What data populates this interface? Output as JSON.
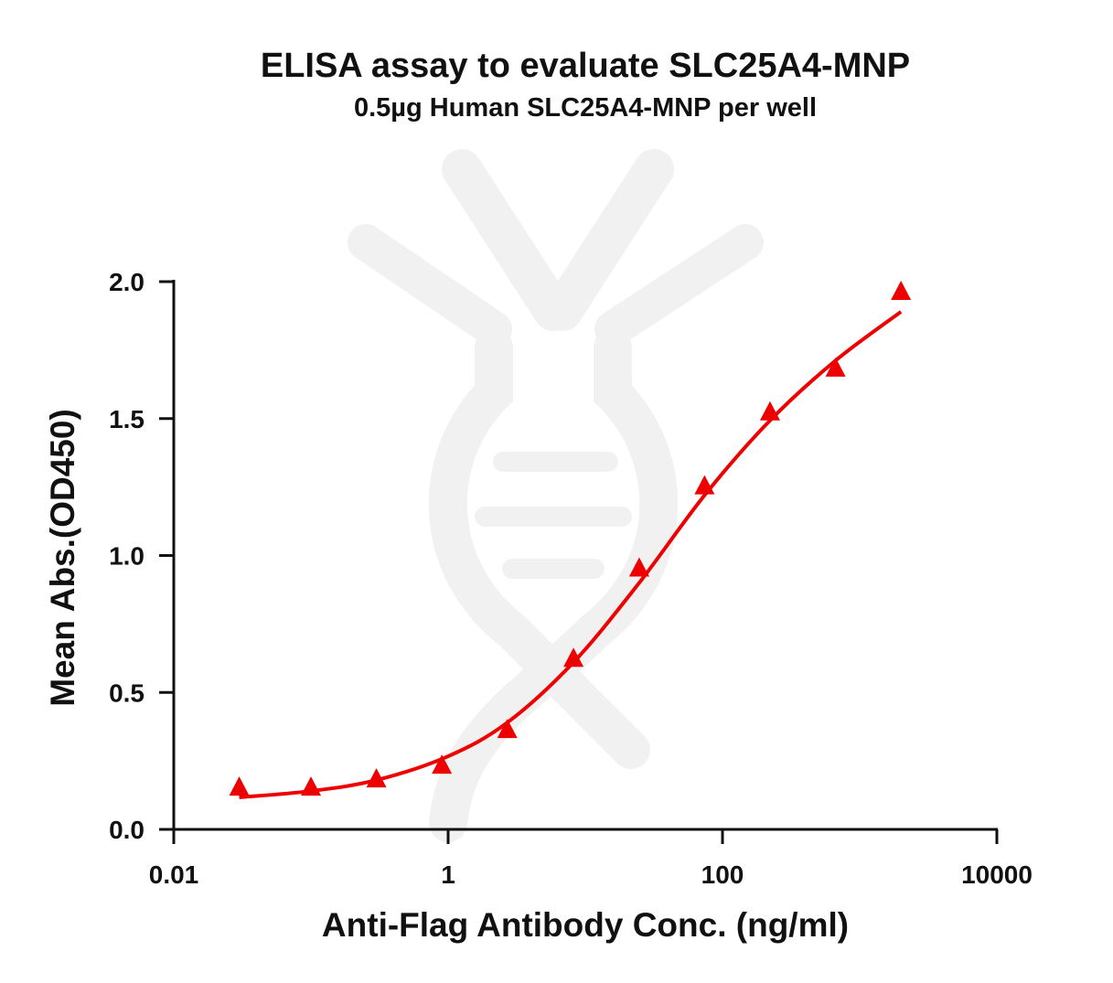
{
  "chart_data": {
    "type": "scatter",
    "title": "ELISA assay to evaluate SLC25A4-MNP",
    "subtitle": "0.5µg Human SLC25A4-MNP per well",
    "xlabel": "Anti-Flag Antibody Conc. (ng/ml)",
    "ylabel": "Mean Abs.(OD450)",
    "xscale": "log",
    "xlim": [
      0.01,
      10000
    ],
    "ylim": [
      0,
      2.0
    ],
    "xticks": [
      {
        "v": 0.01,
        "label": "0.01"
      },
      {
        "v": 1,
        "label": "1"
      },
      {
        "v": 100,
        "label": "100"
      },
      {
        "v": 10000,
        "label": "10000"
      }
    ],
    "yticks": [
      {
        "v": 0,
        "label": "0.0"
      },
      {
        "v": 0.5,
        "label": "0.5"
      },
      {
        "v": 1.0,
        "label": "1.0"
      },
      {
        "v": 1.5,
        "label": "1.5"
      },
      {
        "v": 2.0,
        "label": "2.0"
      }
    ],
    "grid": false,
    "legend": "none",
    "color": "#ee0000",
    "marker": "triangle",
    "points": {
      "x": [
        0.03,
        0.1,
        0.3,
        0.9,
        2.7,
        8.2,
        24.7,
        74,
        222,
        667,
        2000
      ],
      "y": [
        0.15,
        0.15,
        0.18,
        0.23,
        0.36,
        0.62,
        0.95,
        1.25,
        1.52,
        1.68,
        1.96
      ]
    },
    "fit_curve": {
      "x": [
        0.03,
        0.1,
        0.3,
        1,
        2.7,
        8.2,
        24.7,
        74,
        219,
        660,
        2000
      ],
      "y": [
        0.117,
        0.14,
        0.18,
        0.267,
        0.39,
        0.61,
        0.9,
        1.22,
        1.49,
        1.71,
        1.89
      ]
    }
  }
}
